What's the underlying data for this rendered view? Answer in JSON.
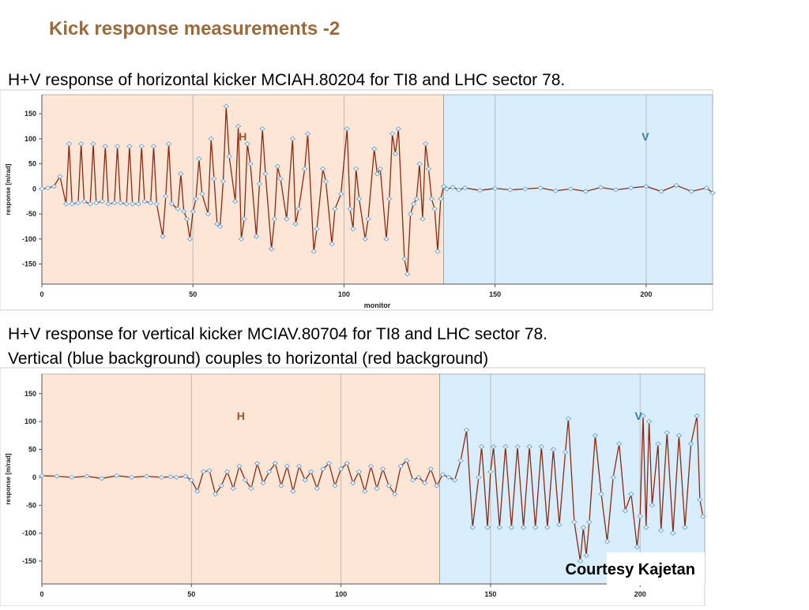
{
  "slide_title": "Kick response measurements -2",
  "caption_1": "H+V response of horizontal kicker MCIAH.80204 for TI8 and LHC sector 78.",
  "caption_2_lines": [
    "H+V response for vertical kicker MCIAV.80704 for TI8 and LHC sector 78.",
    "Vertical (blue background) couples to horizontal (red background)"
  ],
  "credit": "Courtesy Kajetan",
  "chart_data": [
    {
      "type": "line",
      "ylabel": "response [m/rad]",
      "xlabel": "monitor",
      "xlim": [
        0,
        222
      ],
      "ylim": [
        -190,
        188
      ],
      "xticks": [
        0,
        50,
        100,
        150,
        200
      ],
      "yticks": [
        -150,
        -100,
        -50,
        0,
        50,
        100,
        150
      ],
      "grid": "x",
      "regions": [
        {
          "label": "H",
          "from": 0,
          "to": 133,
          "color": "#fde6d6",
          "label_color": "#a0522d"
        },
        {
          "label": "V",
          "from": 133,
          "to": 222,
          "color": "#d8eefc",
          "label_color": "#3a7ca5"
        }
      ],
      "series": [
        {
          "color": "#8b2a10",
          "marker_color": "#6fa8dc",
          "x": [
            0,
            2,
            4,
            6,
            8,
            9,
            10,
            12,
            13,
            14,
            16,
            17,
            18,
            20,
            21,
            22,
            24,
            25,
            26,
            28,
            29,
            30,
            32,
            33,
            34,
            36,
            37,
            38,
            40,
            41,
            42,
            43,
            45,
            46,
            47,
            48,
            49,
            50,
            51,
            52,
            53,
            55,
            56,
            57,
            58,
            59,
            60,
            61,
            62,
            64,
            65,
            66,
            67,
            68,
            69,
            71,
            72,
            73,
            74,
            76,
            77,
            78,
            79,
            81,
            83,
            84,
            85,
            87,
            88,
            90,
            91,
            93,
            94,
            96,
            97,
            99,
            101,
            102,
            103,
            104,
            105,
            107,
            108,
            110,
            111,
            112,
            114,
            115,
            116,
            117,
            118,
            120,
            121,
            122,
            123,
            124,
            125,
            126,
            127,
            128,
            129,
            130,
            131,
            132,
            133,
            134,
            136,
            138,
            140,
            145,
            150,
            155,
            160,
            165,
            170,
            175,
            180,
            185,
            190,
            195,
            200,
            205,
            210,
            215,
            220,
            222
          ],
          "values": [
            0,
            2,
            5,
            25,
            -30,
            90,
            -30,
            -28,
            90,
            -25,
            -30,
            90,
            -28,
            -25,
            85,
            -30,
            -28,
            85,
            -28,
            -30,
            85,
            -30,
            -30,
            85,
            -25,
            -28,
            85,
            -30,
            -95,
            -15,
            90,
            -30,
            -40,
            30,
            -45,
            -60,
            -100,
            -45,
            -20,
            60,
            -10,
            -50,
            100,
            20,
            -70,
            -75,
            15,
            165,
            65,
            -25,
            125,
            -100,
            -60,
            90,
            50,
            -95,
            10,
            120,
            30,
            -120,
            -60,
            45,
            20,
            -60,
            100,
            -70,
            -40,
            40,
            110,
            -125,
            -80,
            40,
            15,
            -110,
            -40,
            -10,
            120,
            -40,
            -80,
            40,
            -20,
            -100,
            -60,
            80,
            30,
            40,
            -100,
            -20,
            110,
            70,
            120,
            -140,
            -170,
            -50,
            -30,
            -20,
            50,
            -60,
            90,
            40,
            -20,
            -40,
            -125,
            -20,
            5,
            0,
            3,
            -2,
            2,
            -3,
            1,
            -2,
            0,
            2,
            -4,
            0,
            -5,
            3,
            -2,
            2,
            5,
            -5,
            7,
            -5,
            2,
            -8
          ]
        }
      ]
    },
    {
      "type": "line",
      "ylabel": "response [m/rad]",
      "xlim": [
        0,
        221.6
      ],
      "ylim": [
        -191,
        185
      ],
      "xticks": [
        0,
        50,
        100,
        150,
        200
      ],
      "yticks": [
        -150,
        -100,
        -50,
        0,
        50,
        100,
        150
      ],
      "grid": "x",
      "regions": [
        {
          "label": "H",
          "from": 0,
          "to": 133,
          "color": "#fde6d6",
          "label_color": "#a0522d"
        },
        {
          "label": "V",
          "from": 133,
          "to": 221.6,
          "color": "#d8eefc",
          "label_color": "#3a7ca5"
        }
      ],
      "series": [
        {
          "color": "#8b2a10",
          "marker_color": "#6fa8dc",
          "x": [
            0,
            5,
            10,
            15,
            20,
            25,
            30,
            35,
            40,
            43,
            45,
            48,
            50,
            52,
            54,
            56,
            58,
            60,
            62,
            64,
            66,
            68,
            70,
            72,
            74,
            76,
            78,
            80,
            82,
            84,
            86,
            88,
            90,
            92,
            94,
            96,
            98,
            100,
            102,
            104,
            106,
            108,
            110,
            112,
            114,
            116,
            118,
            120,
            122,
            124,
            126,
            128,
            130,
            132,
            134,
            136,
            138,
            140,
            142,
            144,
            146,
            147,
            149,
            150,
            151,
            153,
            155,
            157,
            159,
            161,
            163,
            165,
            167,
            169,
            171,
            173,
            175,
            176,
            178,
            180,
            181,
            182,
            183,
            185,
            187,
            189,
            191,
            193,
            195,
            197,
            199,
            200,
            201,
            202,
            203,
            204,
            206,
            207,
            209,
            211,
            213,
            215,
            217,
            219,
            220,
            221
          ],
          "values": [
            3,
            2,
            0,
            2,
            -2,
            3,
            0,
            2,
            0,
            1,
            0,
            2,
            -5,
            -25,
            10,
            12,
            -30,
            -15,
            10,
            -20,
            20,
            -5,
            -20,
            25,
            -10,
            10,
            25,
            -15,
            20,
            -25,
            20,
            -5,
            10,
            -20,
            15,
            25,
            -15,
            15,
            25,
            -10,
            10,
            -25,
            20,
            -20,
            15,
            -15,
            -30,
            20,
            30,
            -5,
            0,
            -10,
            15,
            -15,
            5,
            0,
            -5,
            30,
            85,
            -90,
            0,
            55,
            -90,
            10,
            55,
            -90,
            55,
            -90,
            55,
            -90,
            55,
            -90,
            55,
            -90,
            50,
            -85,
            45,
            105,
            -80,
            -150,
            -90,
            -140,
            -80,
            75,
            -30,
            -115,
            0,
            60,
            -60,
            -30,
            -125,
            -70,
            110,
            -90,
            100,
            -50,
            60,
            -95,
            80,
            -100,
            75,
            -90,
            60,
            110,
            -40,
            -70
          ]
        }
      ]
    }
  ]
}
